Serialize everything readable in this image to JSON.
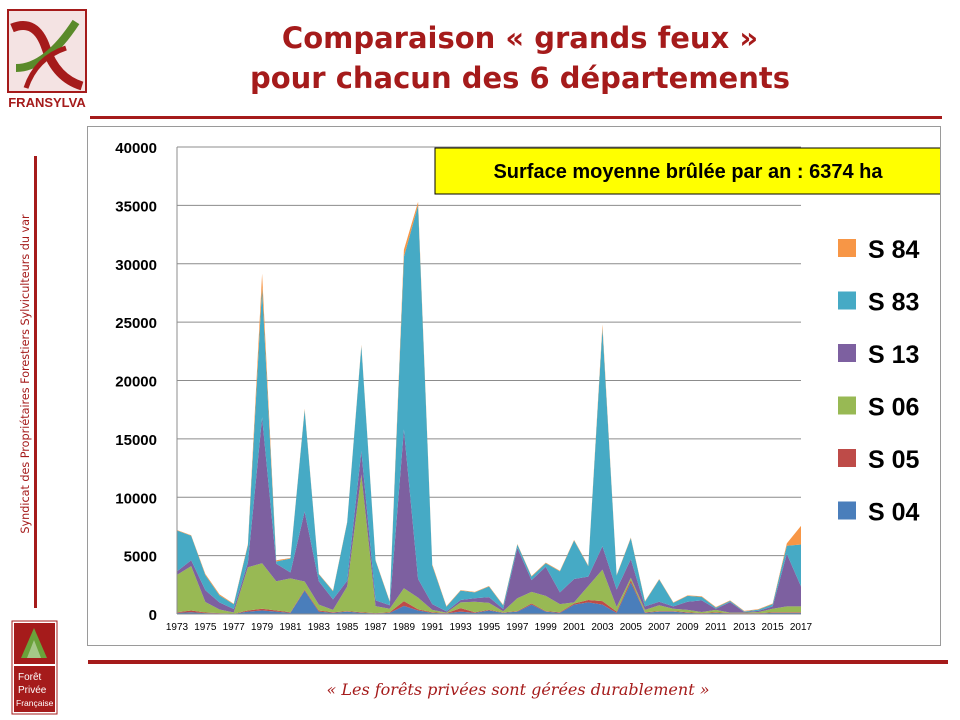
{
  "slide": {
    "title_line1": "Comparaison « grands feux »",
    "title_line2": "pour chacun des 6 départements",
    "side_text": "Syndicat des Propriétaires Forestiers Sylviculteurs du var",
    "footer": "« Les forêts privées sont gérées durablement »",
    "logo_top_text": "FRANSYLVA",
    "logo_bottom_text": [
      "Forêt",
      "Privée",
      "Française"
    ]
  },
  "colors": {
    "brand_red": "#a51b1b",
    "S 04": "#4a7ebb",
    "S 05": "#be4b48",
    "S 06": "#98b954",
    "S 13": "#7d60a0",
    "S 83": "#46aac5",
    "S 84": "#f79646",
    "annotation_bg": "#ffff00"
  },
  "chart_data": {
    "type": "area",
    "stacked": true,
    "annotation": "Surface moyenne brûlée par an : 6374 ha",
    "x": [
      1973,
      1974,
      1975,
      1976,
      1977,
      1978,
      1979,
      1980,
      1981,
      1982,
      1983,
      1984,
      1985,
      1986,
      1987,
      1988,
      1989,
      1990,
      1991,
      1992,
      1993,
      1994,
      1995,
      1996,
      1997,
      1998,
      1999,
      2000,
      2001,
      2002,
      2003,
      2004,
      2005,
      2006,
      2007,
      2008,
      2009,
      2010,
      2011,
      2012,
      2013,
      2014,
      2015,
      2016,
      2017
    ],
    "x_tick_labels": [
      "1973",
      "1975",
      "1977",
      "1979",
      "1981",
      "1983",
      "1985",
      "1987",
      "1989",
      "1991",
      "1993",
      "1995",
      "1997",
      "1999",
      "2001",
      "2003",
      "2005",
      "2007",
      "2009",
      "2011",
      "2013",
      "2015",
      "2017"
    ],
    "ylim": [
      0,
      40000
    ],
    "y_ticks": [
      0,
      5000,
      10000,
      15000,
      20000,
      25000,
      30000,
      35000,
      40000
    ],
    "grid": true,
    "legend_position": "right",
    "legend_order": [
      "S 84",
      "S 83",
      "S 13",
      "S 06",
      "S 05",
      "S 04"
    ],
    "series": [
      {
        "name": "S 04",
        "values": [
          100,
          150,
          80,
          50,
          20,
          200,
          300,
          200,
          100,
          2000,
          200,
          100,
          200,
          100,
          50,
          100,
          700,
          300,
          100,
          50,
          200,
          100,
          300,
          100,
          200,
          800,
          200,
          100,
          800,
          1000,
          800,
          100,
          2700,
          100,
          200,
          200,
          100,
          50,
          100,
          50,
          50,
          50,
          100,
          100,
          100
        ]
      },
      {
        "name": "S 05",
        "values": [
          50,
          150,
          50,
          30,
          10,
          100,
          150,
          100,
          50,
          80,
          100,
          50,
          50,
          50,
          20,
          50,
          400,
          100,
          50,
          20,
          300,
          50,
          50,
          30,
          50,
          100,
          50,
          50,
          100,
          200,
          300,
          100,
          200,
          50,
          50,
          50,
          50,
          20,
          50,
          20,
          20,
          20,
          50,
          50,
          50
        ]
      },
      {
        "name": "S 06",
        "values": [
          3200,
          3800,
          900,
          300,
          100,
          3700,
          3900,
          2500,
          2900,
          700,
          500,
          200,
          2100,
          11800,
          600,
          300,
          1100,
          1000,
          200,
          50,
          500,
          900,
          600,
          100,
          1100,
          1000,
          1300,
          700,
          100,
          1200,
          2700,
          400,
          200,
          200,
          500,
          200,
          200,
          100,
          200,
          50,
          50,
          100,
          300,
          500,
          500
        ]
      },
      {
        "name": "S 13",
        "values": [
          300,
          500,
          1000,
          600,
          300,
          400,
          12500,
          1500,
          500,
          6000,
          2000,
          900,
          500,
          2000,
          500,
          300,
          13600,
          1600,
          500,
          100,
          200,
          300,
          500,
          200,
          4300,
          1000,
          2500,
          1000,
          2000,
          800,
          2000,
          1500,
          1600,
          300,
          300,
          200,
          700,
          1000,
          100,
          900,
          50,
          100,
          200,
          4500,
          1700
        ]
      },
      {
        "name": "S 83",
        "values": [
          3500,
          2100,
          1300,
          600,
          400,
          1500,
          11100,
          200,
          1200,
          8700,
          600,
          700,
          5000,
          9000,
          3400,
          300,
          14800,
          32000,
          3300,
          400,
          800,
          500,
          900,
          300,
          300,
          300,
          300,
          1800,
          3300,
          900,
          18700,
          1200,
          1800,
          400,
          1900,
          300,
          500,
          300,
          100,
          100,
          50,
          100,
          200,
          700,
          3600
        ]
      },
      {
        "name": "S 84",
        "values": [
          50,
          50,
          100,
          100,
          50,
          100,
          1200,
          100,
          50,
          100,
          50,
          50,
          50,
          100,
          50,
          50,
          600,
          300,
          100,
          50,
          50,
          50,
          50,
          50,
          50,
          50,
          50,
          50,
          50,
          50,
          300,
          50,
          50,
          50,
          50,
          50,
          50,
          50,
          50,
          50,
          50,
          50,
          50,
          200,
          1600
        ]
      }
    ]
  }
}
